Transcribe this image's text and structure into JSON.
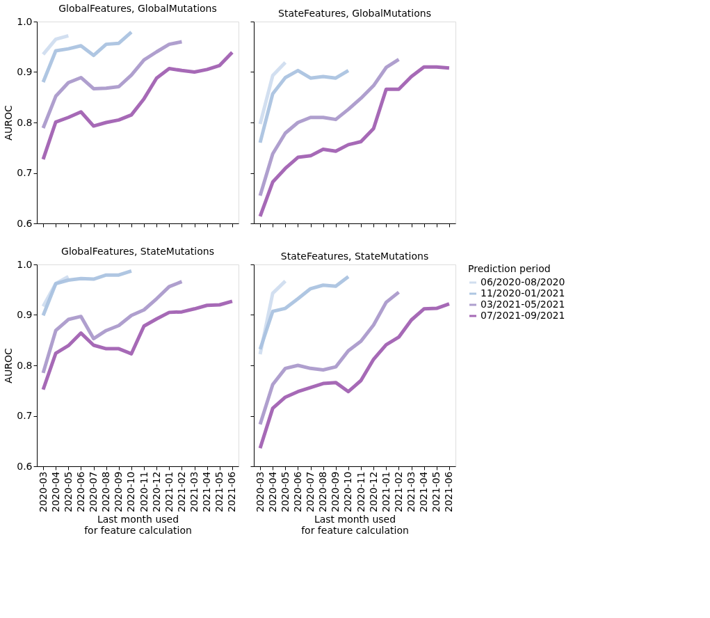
{
  "chart_data": [
    {
      "type": "line",
      "title": "GlobalFeatures, GlobalMutations",
      "ylabel": "AUROC",
      "categories": [
        "2020-03",
        "2020-04",
        "2020-05",
        "2020-06",
        "2020-07",
        "2020-08",
        "2020-09",
        "2020-10",
        "2020-11",
        "2020-12",
        "2021-01",
        "2021-02",
        "2021-03",
        "2021-04",
        "2021-05",
        "2021-06"
      ],
      "ylim": [
        0.6,
        1.0
      ],
      "yticks": [
        0.6,
        0.7,
        0.8,
        0.9,
        {
          "value": 1,
          "label": "1.0"
        }
      ],
      "tick_labels": "y",
      "grid": false,
      "legend": false,
      "line_style": "solid",
      "marker": "none",
      "series": [
        {
          "color": "#cddcee",
          "values": [
            0.935,
            0.965,
            0.972,
            null,
            null,
            null,
            null,
            null,
            null,
            null,
            null,
            null,
            null,
            null,
            null,
            null
          ]
        },
        {
          "color": "#a6c0df",
          "values": [
            0.88,
            0.942,
            0.946,
            0.952,
            0.933,
            0.955,
            0.957,
            0.979,
            null,
            null,
            null,
            null,
            null,
            null,
            null,
            null
          ]
        },
        {
          "color": "#a695c9",
          "values": [
            0.789,
            0.852,
            0.879,
            0.889,
            0.867,
            0.868,
            0.871,
            0.894,
            0.924,
            0.94,
            0.955,
            0.96,
            null,
            null,
            null,
            null
          ]
        },
        {
          "color": "#9c59ae",
          "values": [
            0.727,
            0.801,
            0.81,
            0.821,
            0.793,
            0.8,
            0.805,
            0.815,
            0.847,
            0.888,
            0.907,
            0.903,
            0.9,
            0.905,
            0.913,
            0.939
          ]
        }
      ]
    },
    {
      "type": "line",
      "title": "StateFeatures, GlobalMutations",
      "categories": [
        "2020-03",
        "2020-04",
        "2020-05",
        "2020-06",
        "2020-07",
        "2020-08",
        "2020-09",
        "2020-10",
        "2020-11",
        "2020-12",
        "2021-01",
        "2021-02",
        "2021-03",
        "2021-04",
        "2021-05",
        "2021-06"
      ],
      "ylim": [
        0.6,
        1.0
      ],
      "yticks": [
        0.6,
        0.7,
        0.8,
        0.9,
        1.0
      ],
      "tick_labels": false,
      "grid": false,
      "legend": false,
      "line_style": "solid",
      "marker": "none",
      "series": [
        {
          "color": "#cddcee",
          "values": [
            0.797,
            0.893,
            0.919,
            null,
            null,
            null,
            null,
            null,
            null,
            null,
            null,
            null,
            null,
            null,
            null,
            null
          ]
        },
        {
          "color": "#a6c0df",
          "values": [
            0.76,
            0.857,
            0.889,
            0.903,
            0.888,
            0.891,
            0.888,
            0.903,
            null,
            null,
            null,
            null,
            null,
            null,
            null,
            null
          ]
        },
        {
          "color": "#a695c9",
          "values": [
            0.655,
            0.738,
            0.779,
            0.8,
            0.81,
            0.81,
            0.806,
            0.826,
            0.848,
            0.873,
            0.909,
            0.925,
            null,
            null,
            null,
            null
          ]
        },
        {
          "color": "#9c59ae",
          "values": [
            0.614,
            0.682,
            0.709,
            0.731,
            0.734,
            0.747,
            0.743,
            0.756,
            0.762,
            0.788,
            0.866,
            0.866,
            0.891,
            0.91,
            0.91,
            0.908
          ]
        }
      ]
    },
    {
      "type": "line",
      "title": "GlobalFeatures, StateMutations",
      "ylabel": "AUROC",
      "xlabel": "Last month used\nfor feature calculation",
      "categories": [
        "2020-03",
        "2020-04",
        "2020-05",
        "2020-06",
        "2020-07",
        "2020-08",
        "2020-09",
        "2020-10",
        "2020-11",
        "2020-12",
        "2021-01",
        "2021-02",
        "2021-03",
        "2021-04",
        "2021-05",
        "2021-06"
      ],
      "ylim": [
        0.6,
        1.0
      ],
      "yticks": [
        0.6,
        0.7,
        0.8,
        0.9,
        {
          "value": 1,
          "label": "1.0"
        }
      ],
      "grid": false,
      "legend": false,
      "line_style": "solid",
      "marker": "none",
      "series": [
        {
          "color": "#cddcee",
          "values": [
            0.917,
            0.962,
            0.976,
            null,
            null,
            null,
            null,
            null,
            null,
            null,
            null,
            null,
            null,
            null,
            null,
            null
          ]
        },
        {
          "color": "#a6c0df",
          "values": [
            0.899,
            0.962,
            0.969,
            0.972,
            0.971,
            0.979,
            0.979,
            0.987,
            null,
            null,
            null,
            null,
            null,
            null,
            null,
            null
          ]
        },
        {
          "color": "#a695c9",
          "values": [
            0.785,
            0.869,
            0.891,
            0.897,
            0.853,
            0.869,
            0.879,
            0.899,
            0.91,
            0.932,
            0.956,
            0.966,
            null,
            null,
            null,
            null
          ]
        },
        {
          "color": "#9c59ae",
          "values": [
            0.752,
            0.824,
            0.839,
            0.864,
            0.84,
            0.833,
            0.833,
            0.823,
            0.878,
            0.892,
            0.905,
            0.906,
            0.912,
            0.919,
            0.92,
            0.927
          ]
        }
      ]
    },
    {
      "type": "line",
      "title": "StateFeatures, StateMutations",
      "xlabel": "Last month used\nfor feature calculation",
      "legend_title": "Prediction period",
      "categories": [
        "2020-03",
        "2020-04",
        "2020-05",
        "2020-06",
        "2020-07",
        "2020-08",
        "2020-09",
        "2020-10",
        "2020-11",
        "2020-12",
        "2021-01",
        "2021-02",
        "2021-03",
        "2021-04",
        "2021-05",
        "2021-06"
      ],
      "ylim": [
        0.6,
        1.0
      ],
      "yticks": [
        0.6,
        0.7,
        0.8,
        0.9,
        1.0
      ],
      "tick_labels": "x",
      "grid": false,
      "legend": "right",
      "line_style": "solid",
      "marker": "none",
      "series": [
        {
          "name": "06/2020-08/2020",
          "color": "#cddcee",
          "values": [
            0.822,
            0.943,
            0.967,
            null,
            null,
            null,
            null,
            null,
            null,
            null,
            null,
            null,
            null,
            null,
            null,
            null
          ]
        },
        {
          "name": "11/2020-01/2021",
          "color": "#a6c0df",
          "values": [
            0.832,
            0.907,
            0.913,
            0.932,
            0.952,
            0.959,
            0.957,
            0.976,
            null,
            null,
            null,
            null,
            null,
            null,
            null,
            null
          ]
        },
        {
          "name": "03/2021-05/2021",
          "color": "#a695c9",
          "values": [
            0.683,
            0.762,
            0.794,
            0.8,
            0.794,
            0.791,
            0.797,
            0.829,
            0.848,
            0.88,
            0.925,
            0.945,
            null,
            null,
            null,
            null
          ]
        },
        {
          "name": "07/2021-09/2021",
          "color": "#9c59ae",
          "values": [
            0.636,
            0.715,
            0.737,
            0.748,
            0.756,
            0.764,
            0.766,
            0.748,
            0.77,
            0.812,
            0.841,
            0.856,
            0.89,
            0.912,
            0.913,
            0.922
          ]
        }
      ]
    }
  ]
}
